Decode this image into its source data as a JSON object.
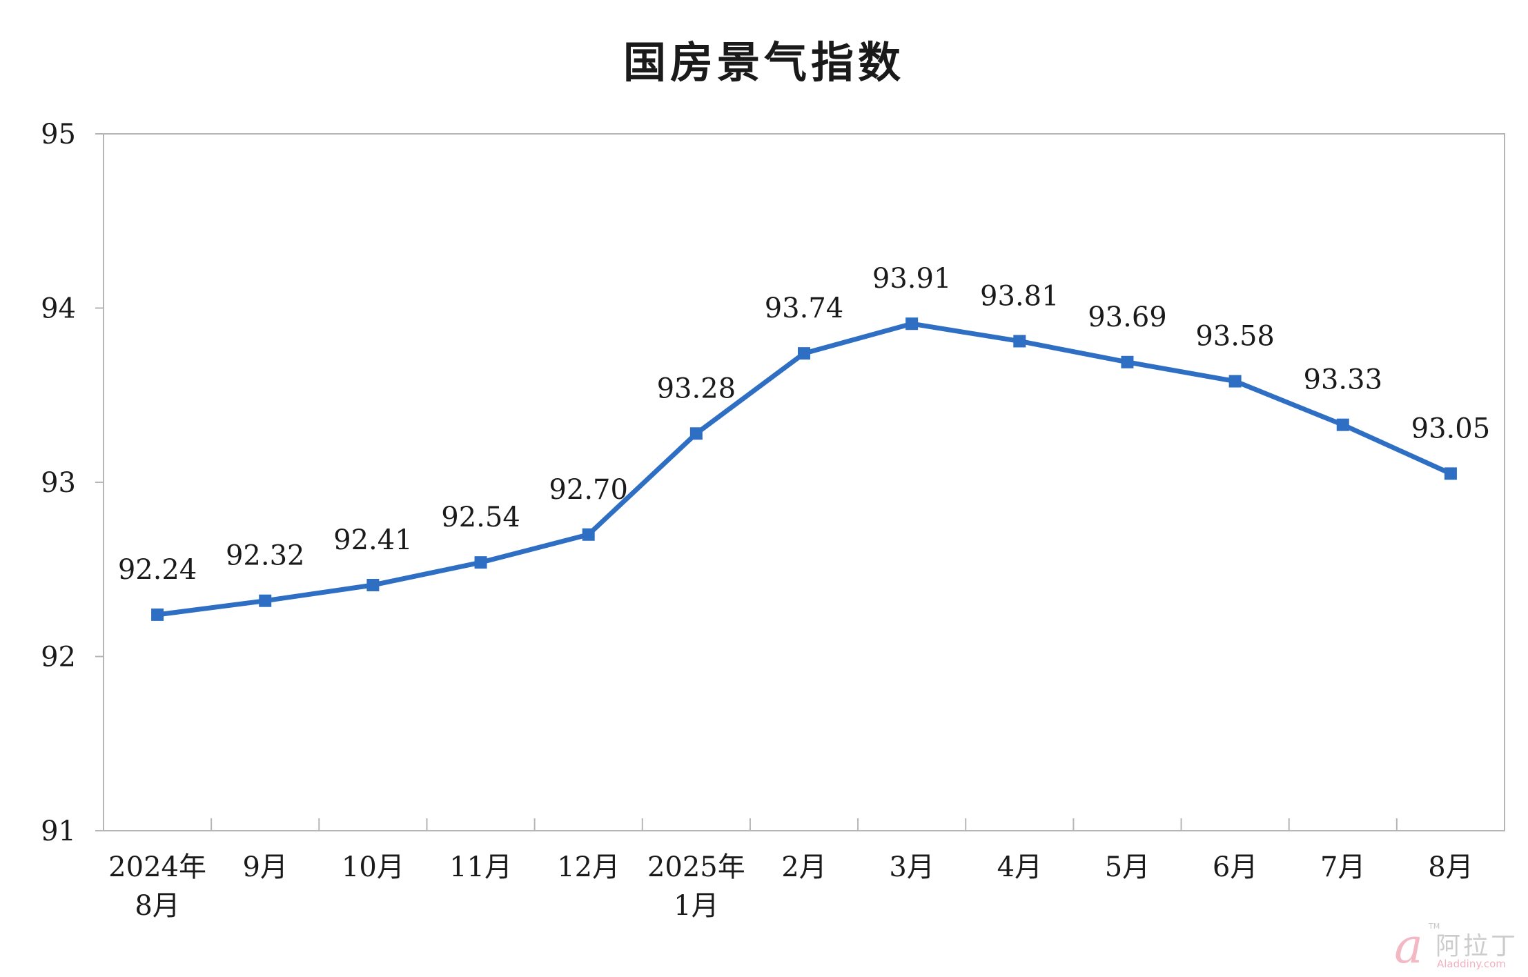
{
  "chart_data": {
    "type": "line",
    "title": "国房景气指数",
    "categories": [
      [
        "2024年",
        "8月"
      ],
      [
        "9月"
      ],
      [
        "10月"
      ],
      [
        "11月"
      ],
      [
        "12月"
      ],
      [
        "2025年",
        "1月"
      ],
      [
        "2月"
      ],
      [
        "3月"
      ],
      [
        "4月"
      ],
      [
        "5月"
      ],
      [
        "6月"
      ],
      [
        "7月"
      ],
      [
        "8月"
      ]
    ],
    "series": [
      {
        "values": [
          92.24,
          92.32,
          92.41,
          92.54,
          92.7,
          93.28,
          93.74,
          93.91,
          93.81,
          93.69,
          93.58,
          93.33,
          93.05
        ],
        "labels": [
          "92.24",
          "92.32",
          "92.41",
          "92.54",
          "92.70",
          "93.28",
          "93.74",
          "93.91",
          "93.81",
          "93.69",
          "93.58",
          "93.33",
          "93.05"
        ],
        "color": "#2e6fc4"
      }
    ],
    "ylim": [
      91,
      95
    ],
    "yticks": [
      "91",
      "92",
      "93",
      "94",
      "95"
    ],
    "grid": false,
    "legend": "none",
    "marker": "square",
    "axis_color": "#b5b5b5"
  },
  "watermark": {
    "logo": "a",
    "trademark": "TM",
    "name": "阿拉丁",
    "url": "Aladdiny.com"
  }
}
